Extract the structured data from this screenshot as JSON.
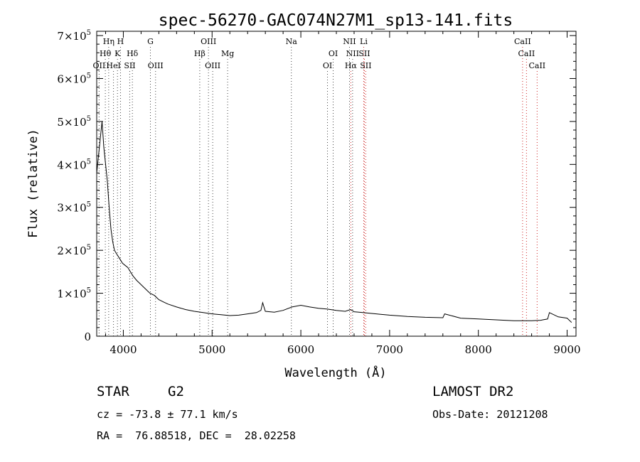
{
  "chart_data": {
    "type": "line",
    "title": "spec-56270-GAC074N27M1_sp13-141.fits",
    "xlabel": "Wavelength (Å)",
    "ylabel": "Flux (relative)",
    "xlim": [
      3700,
      9100
    ],
    "ylim": [
      0,
      710000
    ],
    "x_ticks": [
      4000,
      5000,
      6000,
      7000,
      8000,
      9000
    ],
    "y_ticks": [
      {
        "value": 0,
        "label": "0"
      },
      {
        "value": 100000,
        "label": "1×10",
        "exp": "5"
      },
      {
        "value": 200000,
        "label": "2×10",
        "exp": "5"
      },
      {
        "value": 300000,
        "label": "3×10",
        "exp": "5"
      },
      {
        "value": 400000,
        "label": "4×10",
        "exp": "5"
      },
      {
        "value": 500000,
        "label": "5×10",
        "exp": "5"
      },
      {
        "value": 600000,
        "label": "6×10",
        "exp": "5"
      },
      {
        "value": 700000,
        "label": "7×10",
        "exp": "5"
      }
    ],
    "grid": false,
    "series": [
      {
        "x": [
          3700,
          3720,
          3740,
          3760,
          3780,
          3800,
          3820,
          3840,
          3860,
          3880,
          3900,
          3930,
          3960,
          3990,
          4020,
          4050,
          4080,
          4110,
          4150,
          4200,
          4250,
          4300,
          4350,
          4400,
          4450,
          4500,
          4600,
          4700,
          4800,
          4900,
          5000,
          5100,
          5200,
          5300,
          5400,
          5500,
          5550,
          5570,
          5600,
          5700,
          5800,
          5900,
          6000,
          6100,
          6200,
          6300,
          6400,
          6500,
          6560,
          6600,
          6700,
          6800,
          6900,
          7000,
          7200,
          7400,
          7600,
          7620,
          7800,
          8000,
          8200,
          8400,
          8600,
          8700,
          8780,
          8800,
          8900,
          9000,
          9050
        ],
        "y": [
          380000,
          420000,
          460000,
          500000,
          440000,
          400000,
          360000,
          300000,
          250000,
          220000,
          200000,
          190000,
          180000,
          170000,
          165000,
          160000,
          150000,
          140000,
          130000,
          120000,
          110000,
          100000,
          95000,
          85000,
          80000,
          75000,
          68000,
          62000,
          58000,
          55000,
          52000,
          50000,
          48000,
          49000,
          52000,
          55000,
          60000,
          78000,
          58000,
          56000,
          60000,
          68000,
          72000,
          68000,
          65000,
          63000,
          60000,
          58000,
          62000,
          57000,
          55000,
          53000,
          51000,
          49000,
          46000,
          44000,
          43000,
          52000,
          42000,
          40000,
          38000,
          36000,
          36000,
          37000,
          40000,
          55000,
          45000,
          42000,
          32000
        ]
      }
    ],
    "line_markers": [
      {
        "label": "Hη",
        "x": 3835,
        "row": 0,
        "color": "#444444"
      },
      {
        "label": "H",
        "x": 3968,
        "row": 0,
        "color": "#444444"
      },
      {
        "label": "G",
        "x": 4305,
        "row": 0,
        "color": "#444444"
      },
      {
        "label": "OIII",
        "x": 4959,
        "row": 0,
        "color": "#444444"
      },
      {
        "label": "Na",
        "x": 5893,
        "row": 0,
        "color": "#444444"
      },
      {
        "label": "NII",
        "x": 6548,
        "row": 0,
        "color": "#444444"
      },
      {
        "label": "Li",
        "x": 6708,
        "row": 0,
        "color": "#cc2222"
      },
      {
        "label": "CaII",
        "x": 8498,
        "row": 0,
        "color": "#cc2222"
      },
      {
        "label": "Hθ",
        "x": 3797,
        "row": 1,
        "color": "#444444"
      },
      {
        "label": "K",
        "x": 3934,
        "row": 1,
        "color": "#444444"
      },
      {
        "label": "Hδ",
        "x": 4102,
        "row": 1,
        "color": "#444444"
      },
      {
        "label": "Hβ",
        "x": 4861,
        "row": 1,
        "color": "#444444"
      },
      {
        "label": "Mg",
        "x": 5175,
        "row": 1,
        "color": "#444444"
      },
      {
        "label": "OI",
        "x": 6364,
        "row": 1,
        "color": "#444444"
      },
      {
        "label": "NII",
        "x": 6583,
        "row": 1,
        "color": "#444444"
      },
      {
        "label": "SII",
        "x": 6716,
        "row": 1,
        "color": "#cc2222"
      },
      {
        "label": "CaII",
        "x": 8542,
        "row": 1,
        "color": "#cc2222"
      },
      {
        "label": "OII",
        "x": 3727,
        "row": 2,
        "color": "#444444"
      },
      {
        "label": "HeI",
        "x": 3889,
        "row": 2,
        "color": "#444444"
      },
      {
        "label": "SII",
        "x": 4072,
        "row": 2,
        "color": "#444444"
      },
      {
        "label": "OIII",
        "x": 4363,
        "row": 2,
        "color": "#444444"
      },
      {
        "label": "OIII",
        "x": 5007,
        "row": 2,
        "color": "#444444"
      },
      {
        "label": "OI",
        "x": 6300,
        "row": 2,
        "color": "#444444"
      },
      {
        "label": "Hα",
        "x": 6563,
        "row": 2,
        "color": "#cc2222"
      },
      {
        "label": "SII",
        "x": 6731,
        "row": 2,
        "color": "#cc2222"
      },
      {
        "label": "CaII",
        "x": 8662,
        "row": 2,
        "color": "#cc2222"
      }
    ]
  },
  "info": {
    "object_class": "STAR",
    "subclass": "G2",
    "survey": "LAMOST DR2",
    "cz": "cz = -73.8 ± 77.1 km/s",
    "obs_date": "Obs-Date: 20121208",
    "coords": "RA =  76.88518, DEC =  28.02258"
  }
}
